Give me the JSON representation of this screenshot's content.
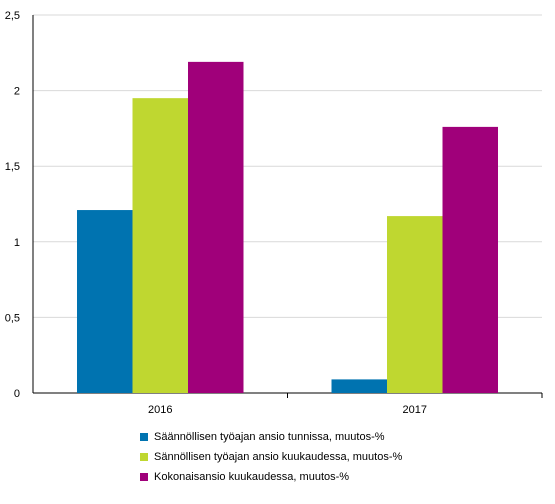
{
  "chart_data": {
    "type": "bar",
    "categories": [
      "2016",
      "2017"
    ],
    "series": [
      {
        "name": "Säännöllisen työajan ansio tunnissa, muutos-%",
        "values": [
          1.21,
          0.09
        ],
        "color": "#0073b0"
      },
      {
        "name": "Sännöllisen työajan ansio kuukaudessa, muutos-%",
        "values": [
          1.95,
          1.17
        ],
        "color": "#bfd730"
      },
      {
        "name": "Kokonaisansio kuukaudessa, muutos-%",
        "values": [
          2.19,
          1.76
        ],
        "color": "#a0007a"
      }
    ],
    "y_ticks": [
      "0",
      "0,5",
      "1",
      "1,5",
      "2",
      "2,5"
    ],
    "ylim": [
      0,
      2.5
    ],
    "grid": true,
    "legend_position": "bottom-center"
  }
}
